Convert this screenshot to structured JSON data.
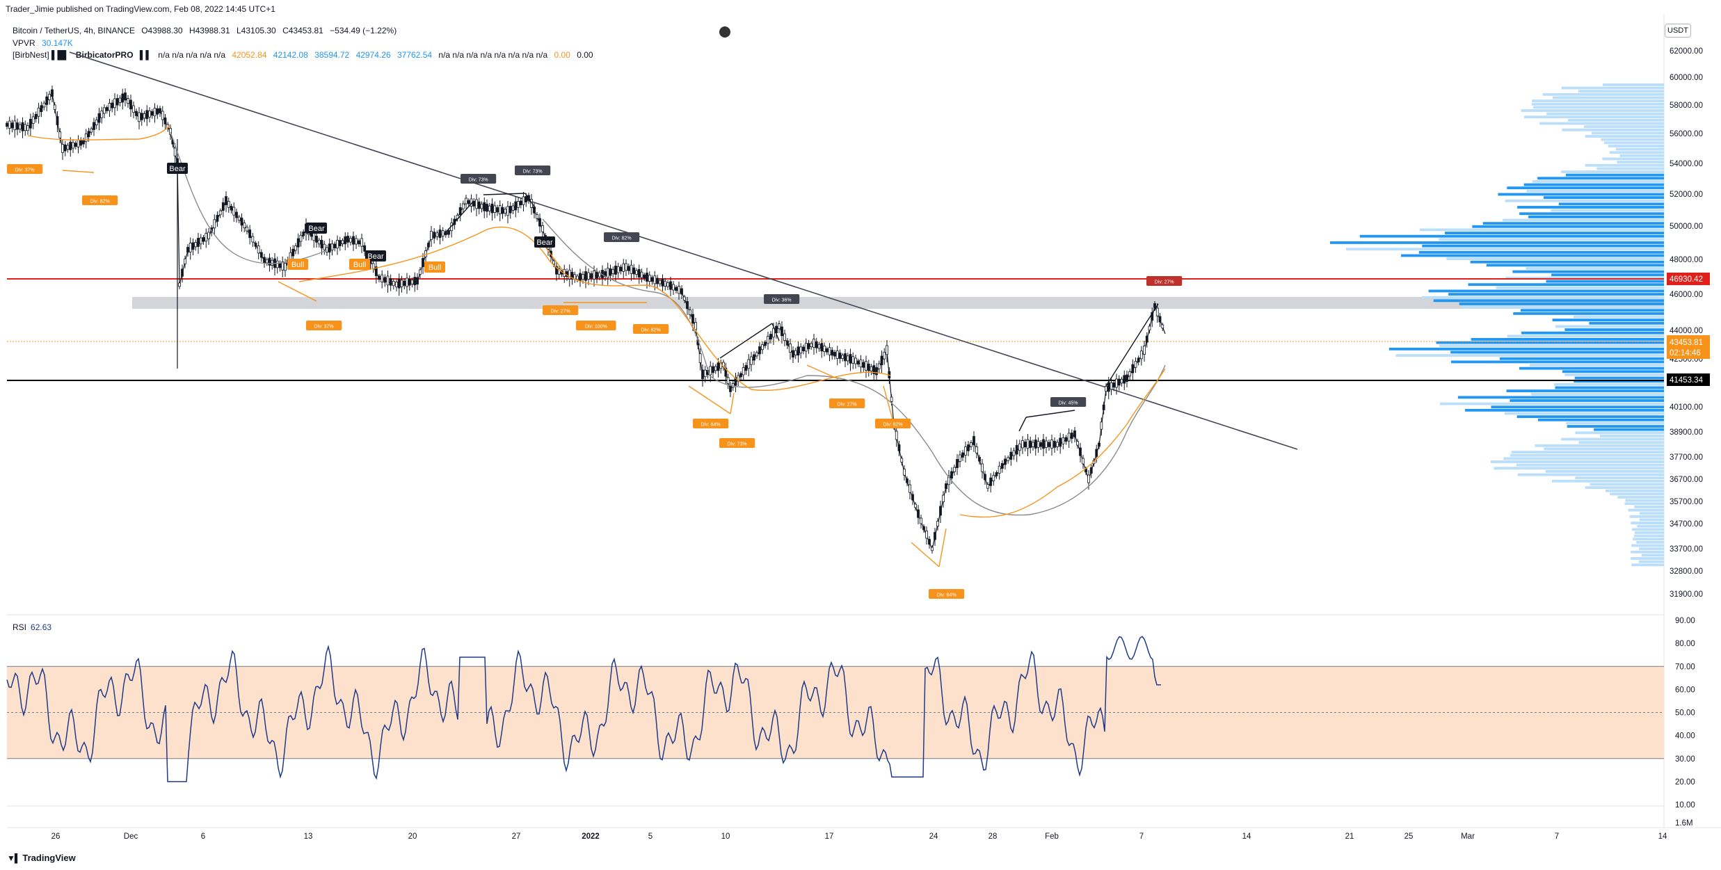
{
  "header": {
    "published": "Trader_Jimie published on TradingView.com, Feb 08, 2022 14:45 UTC+1",
    "symbol": "Bitcoin / TetherUS, 4h, BINANCE",
    "o": "O43988.30",
    "h": "H43988.31",
    "l": "L43105.30",
    "c": "C43453.81",
    "chg": "−534.49 (−1.22%)",
    "vpvr_name": "VPVR",
    "vpvr_val": "30.147K",
    "birb_name": "[BirbNest] ▌█▌",
    "birb_name2": "BirbicatorPRO",
    "birb_mid": "▌▌",
    "birb_na": "n/a  n/a  n/a  n/a  n/a",
    "birb_v1": "42052.84",
    "birb_v2": "42142.08",
    "birb_v3": "38594.72",
    "birb_v4": "42974.26",
    "birb_v5": "37762.54",
    "birb_na2": "n/a  n/a  n/a  n/a  n/a  n/a  n/a  n/a",
    "birb_v6": "0.00",
    "birb_v7": "0.00"
  },
  "currency": "USDT",
  "price_axis": [
    {
      "label": "62000.00",
      "v": 62000
    },
    {
      "label": "60000.00",
      "v": 60000
    },
    {
      "label": "58000.00",
      "v": 58000
    },
    {
      "label": "56000.00",
      "v": 56000
    },
    {
      "label": "54000.00",
      "v": 54000
    },
    {
      "label": "52000.00",
      "v": 52000
    },
    {
      "label": "50000.00",
      "v": 50000
    },
    {
      "label": "48000.00",
      "v": 48000
    },
    {
      "label": "46000.00",
      "v": 46000
    },
    {
      "label": "44000.00",
      "v": 44000
    },
    {
      "label": "42500.00",
      "v": 42500
    },
    {
      "label": "40100.00",
      "v": 40100
    },
    {
      "label": "38900.00",
      "v": 38900
    },
    {
      "label": "37700.00",
      "v": 37700
    },
    {
      "label": "36700.00",
      "v": 36700
    },
    {
      "label": "35700.00",
      "v": 35700
    },
    {
      "label": "34700.00",
      "v": 34700
    },
    {
      "label": "33700.00",
      "v": 33700
    },
    {
      "label": "32800.00",
      "v": 32800
    },
    {
      "label": "31900.00",
      "v": 31900
    }
  ],
  "price_tags": {
    "red_level": "46930.42",
    "last_price": "43453.81",
    "countdown": "02:14:46",
    "black_level": "41453.34"
  },
  "rsi": {
    "label": "RSI",
    "value": "62.63",
    "axis": [
      {
        "label": "90.00",
        "v": 90
      },
      {
        "label": "80.00",
        "v": 80
      },
      {
        "label": "70.00",
        "v": 70
      },
      {
        "label": "60.00",
        "v": 60
      },
      {
        "label": "50.00",
        "v": 50
      },
      {
        "label": "40.00",
        "v": 40
      },
      {
        "label": "30.00",
        "v": 30
      },
      {
        "label": "20.00",
        "v": 20
      },
      {
        "label": "10.00",
        "v": 10
      }
    ],
    "vol_label": "1.6M"
  },
  "time_axis": [
    "26",
    "Dec",
    "6",
    "13",
    "20",
    "27",
    "2022",
    "5",
    "10",
    "17",
    "24",
    "28",
    "Feb",
    "7",
    "14",
    "21",
    "25",
    "Mar",
    "7",
    "14"
  ],
  "labels": {
    "bear": "Bear",
    "bull": "Bull",
    "div_labels": [
      "Div: 37%",
      "Div: 82%",
      "Div: 37%",
      "Div: 73%",
      "Div: 73%",
      "Div: 27%",
      "Div: 100%",
      "Div: 82%",
      "Div: 36%",
      "Div: 64%",
      "Div: 73%",
      "Div: 27%",
      "Div: 82%",
      "Div: 64%",
      "Div: 45%",
      "Div: 27%",
      "Div: 82%"
    ]
  },
  "footer": "TradingView",
  "colors": {
    "bull_orange": "#f7931a",
    "vp_blue": "#2196f3",
    "vp_light": "#bbdefb",
    "red_line": "#e0201b",
    "rsi_line": "#1e3a8a",
    "rsi_band": "#fde1cc"
  }
}
